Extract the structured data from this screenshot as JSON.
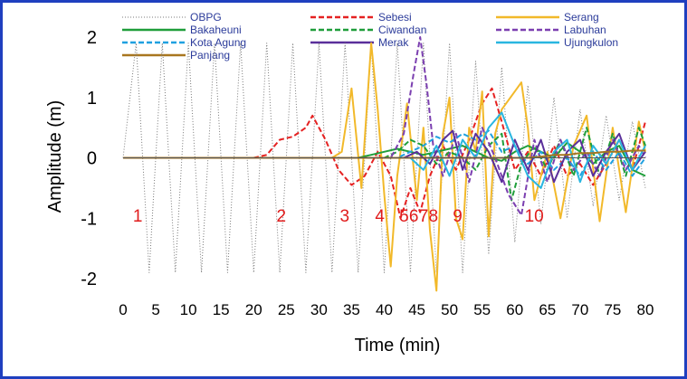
{
  "chart_data": {
    "type": "line",
    "xlabel": "Time (min)",
    "ylabel": "Amplitude (m)",
    "xlim": [
      0,
      80
    ],
    "ylim": [
      -2,
      2
    ],
    "x_ticks": [
      "0",
      "5",
      "10",
      "15",
      "20",
      "25",
      "30",
      "35",
      "40",
      "45",
      "50",
      "55",
      "60",
      "65",
      "70",
      "75",
      "80"
    ],
    "y_ticks": [
      "-2",
      "-1",
      "0",
      "1",
      "2"
    ],
    "grid": false,
    "legend_position": "top",
    "annotations": [
      {
        "text": "1",
        "x": 1.5,
        "y": -0.95
      },
      {
        "text": "2",
        "x": 23.5,
        "y": -0.95
      },
      {
        "text": "3",
        "x": 33.2,
        "y": -0.95
      },
      {
        "text": "4",
        "x": 38.6,
        "y": -0.95
      },
      {
        "text": "5",
        "x": 42.3,
        "y": -0.95
      },
      {
        "text": "6",
        "x": 43.8,
        "y": -0.95
      },
      {
        "text": "7",
        "x": 45.3,
        "y": -0.95
      },
      {
        "text": "8",
        "x": 46.8,
        "y": -0.95
      },
      {
        "text": "9",
        "x": 50.5,
        "y": -0.95
      },
      {
        "text": "10",
        "x": 61.5,
        "y": -0.95
      }
    ],
    "series": [
      {
        "name": "OBPG",
        "color": "#7a7a7a",
        "style": "dotted",
        "x": [
          0,
          2,
          4,
          6,
          8,
          10,
          12,
          14,
          16,
          18,
          20,
          22,
          24,
          26,
          28,
          30,
          32,
          34,
          36,
          38,
          40,
          42,
          44,
          46,
          48,
          50,
          52,
          54,
          56,
          58,
          60,
          62,
          64,
          66,
          68,
          70,
          72,
          74,
          76,
          78,
          80
        ],
        "y": [
          0,
          1.9,
          -1.9,
          1.9,
          -1.9,
          1.9,
          -1.9,
          1.9,
          -1.9,
          1.9,
          -1.9,
          1.9,
          -1.9,
          1.9,
          -1.9,
          1.9,
          -1.9,
          1.9,
          -1.9,
          1.9,
          -1.9,
          1.9,
          -1.9,
          1.9,
          -1.9,
          1.9,
          -1.9,
          1.6,
          -1.6,
          1.5,
          -1.4,
          1.2,
          -1.1,
          1.0,
          -1.0,
          0.8,
          -0.8,
          0.7,
          -0.7,
          0.6,
          -0.5
        ]
      },
      {
        "name": "Sebesi",
        "color": "#e52222",
        "style": "dashed",
        "x": [
          0,
          20,
          22,
          24,
          26,
          28,
          29,
          31,
          33,
          35,
          37,
          39,
          41,
          42.5,
          44,
          45.5,
          47,
          49,
          51,
          53,
          55,
          56.5,
          58,
          60,
          62,
          64,
          66,
          68,
          70,
          72,
          74,
          76,
          78,
          80
        ],
        "y": [
          0,
          0,
          0.05,
          0.3,
          0.35,
          0.5,
          0.7,
          0.3,
          -0.2,
          -0.45,
          -0.3,
          0.1,
          -0.3,
          -1.0,
          -0.5,
          -0.9,
          -0.3,
          0.2,
          -0.2,
          0.3,
          0.9,
          1.15,
          0.6,
          -0.2,
          0.1,
          -0.3,
          0.2,
          -0.3,
          -0.1,
          -0.45,
          -0.1,
          0.3,
          -0.2,
          0.6
        ]
      },
      {
        "name": "Serang",
        "color": "#f2b92a",
        "style": "solid",
        "x": [
          0,
          32,
          33.5,
          35,
          36.5,
          38,
          39,
          40,
          41,
          42,
          43.5,
          45,
          46,
          47,
          48,
          49,
          50,
          51,
          52,
          53,
          54,
          55,
          56,
          57,
          58,
          60,
          61,
          62,
          63,
          65,
          67,
          69,
          71,
          73,
          75,
          77,
          79,
          80
        ],
        "y": [
          0,
          0,
          0.1,
          1.15,
          -0.5,
          1.9,
          0.8,
          -0.6,
          -1.8,
          -0.3,
          0.9,
          -0.7,
          0.5,
          -1.2,
          -2.2,
          0.4,
          1.0,
          -1.0,
          -1.35,
          0.5,
          0.1,
          1.1,
          -1.3,
          0.4,
          0.8,
          1.1,
          1.25,
          0.5,
          -0.7,
          0.1,
          -1.0,
          0.2,
          0.7,
          -1.05,
          0.5,
          -0.9,
          0.6,
          0.1
        ]
      },
      {
        "name": "Bakaheuni",
        "color": "#1f9e3a",
        "style": "solid",
        "x": [
          0,
          36,
          38,
          40,
          42,
          44,
          46,
          48,
          50,
          52,
          54,
          56,
          58,
          60,
          62,
          64,
          66,
          68,
          70,
          72,
          74,
          76,
          78,
          80
        ],
        "y": [
          0,
          0,
          0.05,
          0.1,
          0.15,
          0.1,
          0.05,
          0.1,
          0.15,
          0.2,
          0.1,
          0.0,
          -0.05,
          0.1,
          0.2,
          0.1,
          0.0,
          0.25,
          0.1,
          -0.1,
          0.1,
          0.2,
          -0.2,
          -0.3
        ]
      },
      {
        "name": "Ciwandan",
        "color": "#1f9e3a",
        "style": "dashed",
        "x": [
          0,
          40,
          42,
          44,
          46,
          48,
          50,
          52,
          54,
          56,
          58,
          59.5,
          61,
          63,
          65,
          67,
          69,
          71,
          73,
          75,
          77,
          79,
          80
        ],
        "y": [
          0,
          0,
          0.1,
          0.3,
          0.2,
          -0.1,
          0.1,
          0.0,
          -0.2,
          0.2,
          0.4,
          -0.7,
          -0.1,
          0.2,
          -0.2,
          0.3,
          -0.3,
          0.5,
          -0.3,
          0.4,
          -0.3,
          0.5,
          0.2
        ]
      },
      {
        "name": "Labuhan",
        "color": "#7b3fb0",
        "style": "dashed",
        "x": [
          0,
          41,
          43,
          44.5,
          45.5,
          46.5,
          47.5,
          49,
          51,
          53,
          55,
          57,
          59,
          61,
          63,
          65,
          67,
          69,
          71,
          73,
          75,
          77,
          79,
          80
        ],
        "y": [
          0,
          0,
          0.4,
          1.4,
          2.0,
          1.2,
          0.2,
          -0.3,
          0.4,
          -0.4,
          0.5,
          0.0,
          -0.6,
          -0.95,
          0.3,
          -0.4,
          0.3,
          -0.2,
          0.1,
          -0.3,
          0.3,
          -0.2,
          0.2,
          0.0
        ]
      },
      {
        "name": "Kota Agung",
        "color": "#1fa0e0",
        "style": "dashed",
        "x": [
          0,
          42,
          44,
          46,
          48,
          50,
          52,
          54,
          56,
          58,
          60,
          62,
          64,
          66,
          68,
          70,
          72,
          74,
          76,
          78,
          80
        ],
        "y": [
          0,
          0,
          0.1,
          0.2,
          0.35,
          0.25,
          0.4,
          0.3,
          0.45,
          0.1,
          0.2,
          -0.1,
          0.1,
          -0.2,
          0.0,
          -0.3,
          0.1,
          -0.2,
          0.1,
          -0.3,
          0.0
        ]
      },
      {
        "name": "Merak",
        "color": "#5a2f9a",
        "style": "solid",
        "x": [
          0,
          43,
          45,
          47,
          49,
          50.5,
          52,
          54,
          56,
          58,
          60,
          62,
          64,
          66,
          68,
          70,
          72,
          74,
          76,
          78,
          80
        ],
        "y": [
          0,
          0,
          0.1,
          -0.1,
          0.3,
          0.45,
          -0.2,
          0.4,
          0.1,
          -0.4,
          0.3,
          -0.2,
          0.3,
          -0.4,
          0.1,
          0.3,
          -0.3,
          0.1,
          0.4,
          -0.2,
          0.1
        ]
      },
      {
        "name": "Ujungkulon",
        "color": "#29b6e0",
        "style": "solid",
        "x": [
          0,
          44,
          46,
          48,
          50,
          52,
          54,
          56,
          58,
          60,
          62,
          64,
          66,
          68,
          70,
          72,
          74,
          76,
          78,
          80
        ],
        "y": [
          0,
          0,
          -0.2,
          0.2,
          -0.3,
          0.3,
          0.0,
          0.5,
          0.75,
          0.2,
          -0.3,
          -0.5,
          0.1,
          0.3,
          -0.4,
          0.2,
          -0.1,
          0.3,
          -0.2,
          0.2
        ]
      },
      {
        "name": "Panjang",
        "color": "#a8761f",
        "style": "solid",
        "x": [
          0,
          60,
          62,
          64,
          66,
          68,
          70,
          72,
          74,
          76,
          78,
          80
        ],
        "y": [
          0,
          0,
          0.0,
          0.02,
          0.05,
          0.05,
          0.08,
          0.08,
          0.1,
          0.1,
          0.12,
          0.12
        ]
      }
    ]
  }
}
